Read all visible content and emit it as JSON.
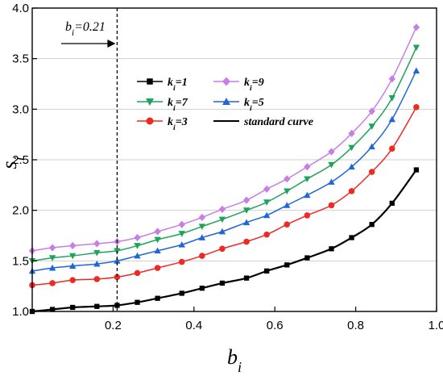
{
  "chart_data": {
    "type": "line",
    "xlabel": {
      "base": "b",
      "sub": "i"
    },
    "ylabel": {
      "base": "s",
      "sub": "i"
    },
    "xlim": [
      0.0,
      1.0
    ],
    "ylim": [
      1.0,
      4.0
    ],
    "xticks": [
      "0.2",
      "0.4",
      "0.6",
      "0.8",
      "1.0"
    ],
    "yticks": [
      "1.0",
      "1.5",
      "2.0",
      "2.5",
      "3.0",
      "3.5",
      "4.0"
    ],
    "xtick_values": [
      0.2,
      0.4,
      0.6,
      0.8,
      1.0
    ],
    "ytick_values": [
      1.0,
      1.5,
      2.0,
      2.5,
      3.0,
      3.5,
      4.0
    ],
    "grid": "horizontal",
    "annotation": {
      "label_base": "b",
      "label_sub": "i",
      "label_rest": "=0.21",
      "x": 0.21,
      "arrow": true
    },
    "x": [
      0.0,
      0.05,
      0.1,
      0.16,
      0.21,
      0.26,
      0.31,
      0.37,
      0.42,
      0.47,
      0.53,
      0.58,
      0.63,
      0.68,
      0.74,
      0.79,
      0.84,
      0.89,
      0.95
    ],
    "series": [
      {
        "name_base": "k",
        "name_sub": "i",
        "name_rest": "=1",
        "color": "#000000",
        "marker": "square",
        "values": [
          1.0,
          1.02,
          1.04,
          1.05,
          1.06,
          1.09,
          1.13,
          1.18,
          1.23,
          1.28,
          1.33,
          1.4,
          1.46,
          1.53,
          1.62,
          1.73,
          1.86,
          2.07,
          2.4
        ]
      },
      {
        "name_base": "k",
        "name_sub": "i",
        "name_rest": "=3",
        "color": "#ee2a24",
        "marker": "circle",
        "values": [
          1.26,
          1.28,
          1.31,
          1.32,
          1.34,
          1.38,
          1.43,
          1.49,
          1.55,
          1.62,
          1.69,
          1.76,
          1.86,
          1.95,
          2.05,
          2.19,
          2.38,
          2.61,
          3.02
        ]
      },
      {
        "name_base": "k",
        "name_sub": "i",
        "name_rest": "=5",
        "color": "#1f66d6",
        "marker": "triangle-up",
        "values": [
          1.4,
          1.43,
          1.45,
          1.47,
          1.5,
          1.55,
          1.6,
          1.66,
          1.73,
          1.79,
          1.88,
          1.95,
          2.05,
          2.15,
          2.28,
          2.43,
          2.63,
          2.9,
          3.38
        ]
      },
      {
        "name_base": "k",
        "name_sub": "i",
        "name_rest": "=7",
        "color": "#1fa35a",
        "marker": "triangle-down",
        "values": [
          1.5,
          1.53,
          1.55,
          1.58,
          1.6,
          1.65,
          1.71,
          1.77,
          1.84,
          1.91,
          2.0,
          2.08,
          2.19,
          2.31,
          2.45,
          2.62,
          2.83,
          3.11,
          3.61
        ]
      },
      {
        "name_base": "k",
        "name_sub": "i",
        "name_rest": "=9",
        "color": "#c77fe6",
        "marker": "diamond",
        "values": [
          1.6,
          1.63,
          1.65,
          1.67,
          1.69,
          1.73,
          1.79,
          1.86,
          1.93,
          2.01,
          2.1,
          2.21,
          2.31,
          2.43,
          2.58,
          2.76,
          2.98,
          3.3,
          3.81
        ]
      }
    ],
    "legend": {
      "placement": "center-left",
      "entries": [
        {
          "name_base": "k",
          "name_sub": "i",
          "name_rest": "=1",
          "color": "#000000",
          "marker": "square"
        },
        {
          "name_base": "k",
          "name_sub": "i",
          "name_rest": "=9",
          "color": "#c77fe6",
          "marker": "diamond"
        },
        {
          "name_base": "k",
          "name_sub": "i",
          "name_rest": "=7",
          "color": "#1fa35a",
          "marker": "triangle-down"
        },
        {
          "name_base": "k",
          "name_sub": "i",
          "name_rest": "=5",
          "color": "#1f66d6",
          "marker": "triangle-up"
        },
        {
          "name_base": "k",
          "name_sub": "i",
          "name_rest": "=3",
          "color": "#ee2a24",
          "marker": "circle"
        },
        {
          "name": "standard curve",
          "color": "#000000",
          "marker": "none"
        }
      ]
    }
  }
}
